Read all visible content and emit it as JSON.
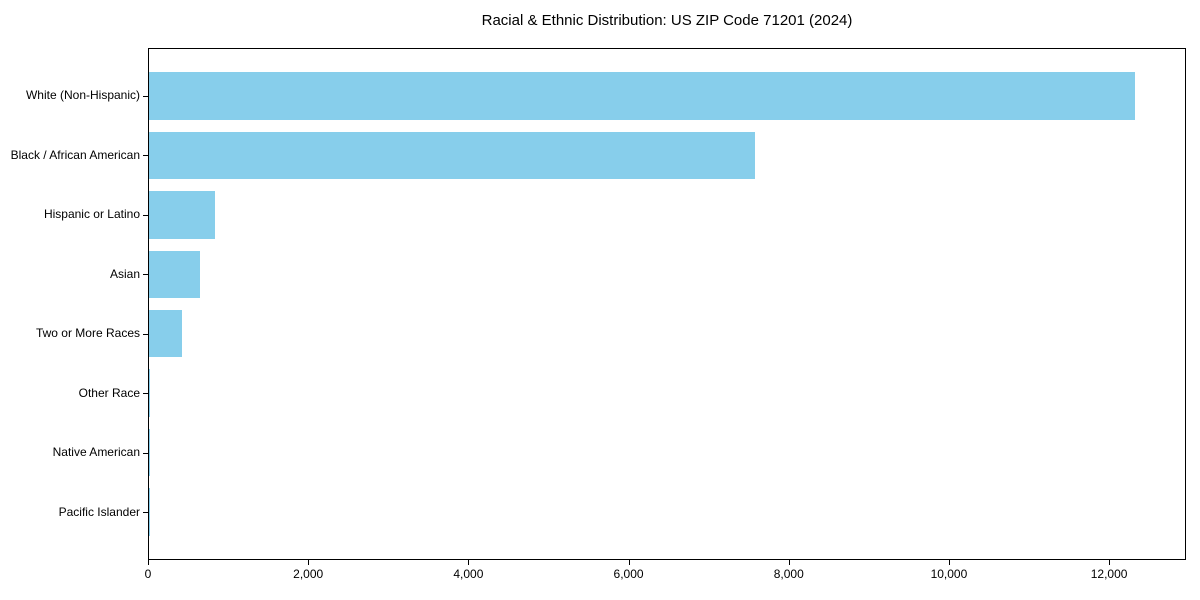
{
  "chart_data": {
    "type": "bar",
    "orientation": "horizontal",
    "title": "Racial & Ethnic Distribution: US ZIP Code 71201 (2024)",
    "categories": [
      "White (Non-Hispanic)",
      "Black / African American",
      "Hispanic or Latino",
      "Asian",
      "Two or More Races",
      "Other Race",
      "Native American",
      "Pacific Islander"
    ],
    "values": [
      12310,
      7560,
      820,
      640,
      410,
      15,
      8,
      4
    ],
    "xlabel": "",
    "ylabel": "",
    "xlim": [
      0,
      12935
    ],
    "x_ticks": [
      0,
      2000,
      4000,
      6000,
      8000,
      10000,
      12000
    ],
    "x_tick_labels": [
      "0",
      "2,000",
      "4,000",
      "6,000",
      "8,000",
      "10,000",
      "12,000"
    ],
    "bar_color": "#87CEEB",
    "spine_color": "#000000",
    "text_color": "#000000",
    "grid": false,
    "legend": null
  }
}
